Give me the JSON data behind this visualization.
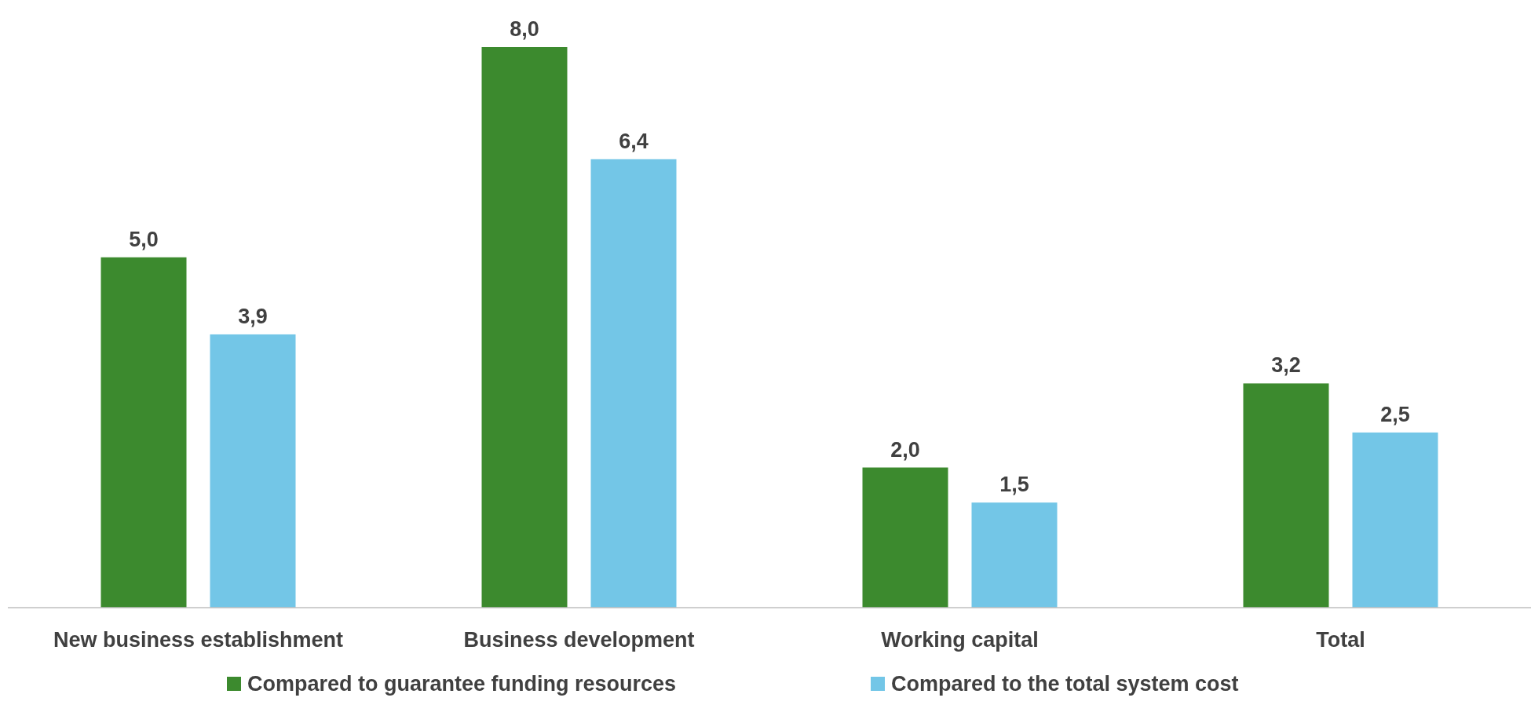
{
  "chart_data": {
    "type": "bar",
    "categories": [
      "New business establishment",
      "Business development",
      "Working capital",
      "Total"
    ],
    "series": [
      {
        "name": "Compared to guarantee funding resources",
        "color": "#3c8a2e",
        "values": [
          5.0,
          8.0,
          2.0,
          3.2
        ],
        "value_labels": [
          "5,0",
          "8,0",
          "2,0",
          "3,2"
        ]
      },
      {
        "name": "Compared to the total system cost",
        "color": "#73c6e7",
        "values": [
          3.9,
          6.4,
          1.5,
          2.5
        ],
        "value_labels": [
          "3,9",
          "6,4",
          "1,5",
          "2,5"
        ]
      }
    ],
    "legend": "bottom"
  }
}
